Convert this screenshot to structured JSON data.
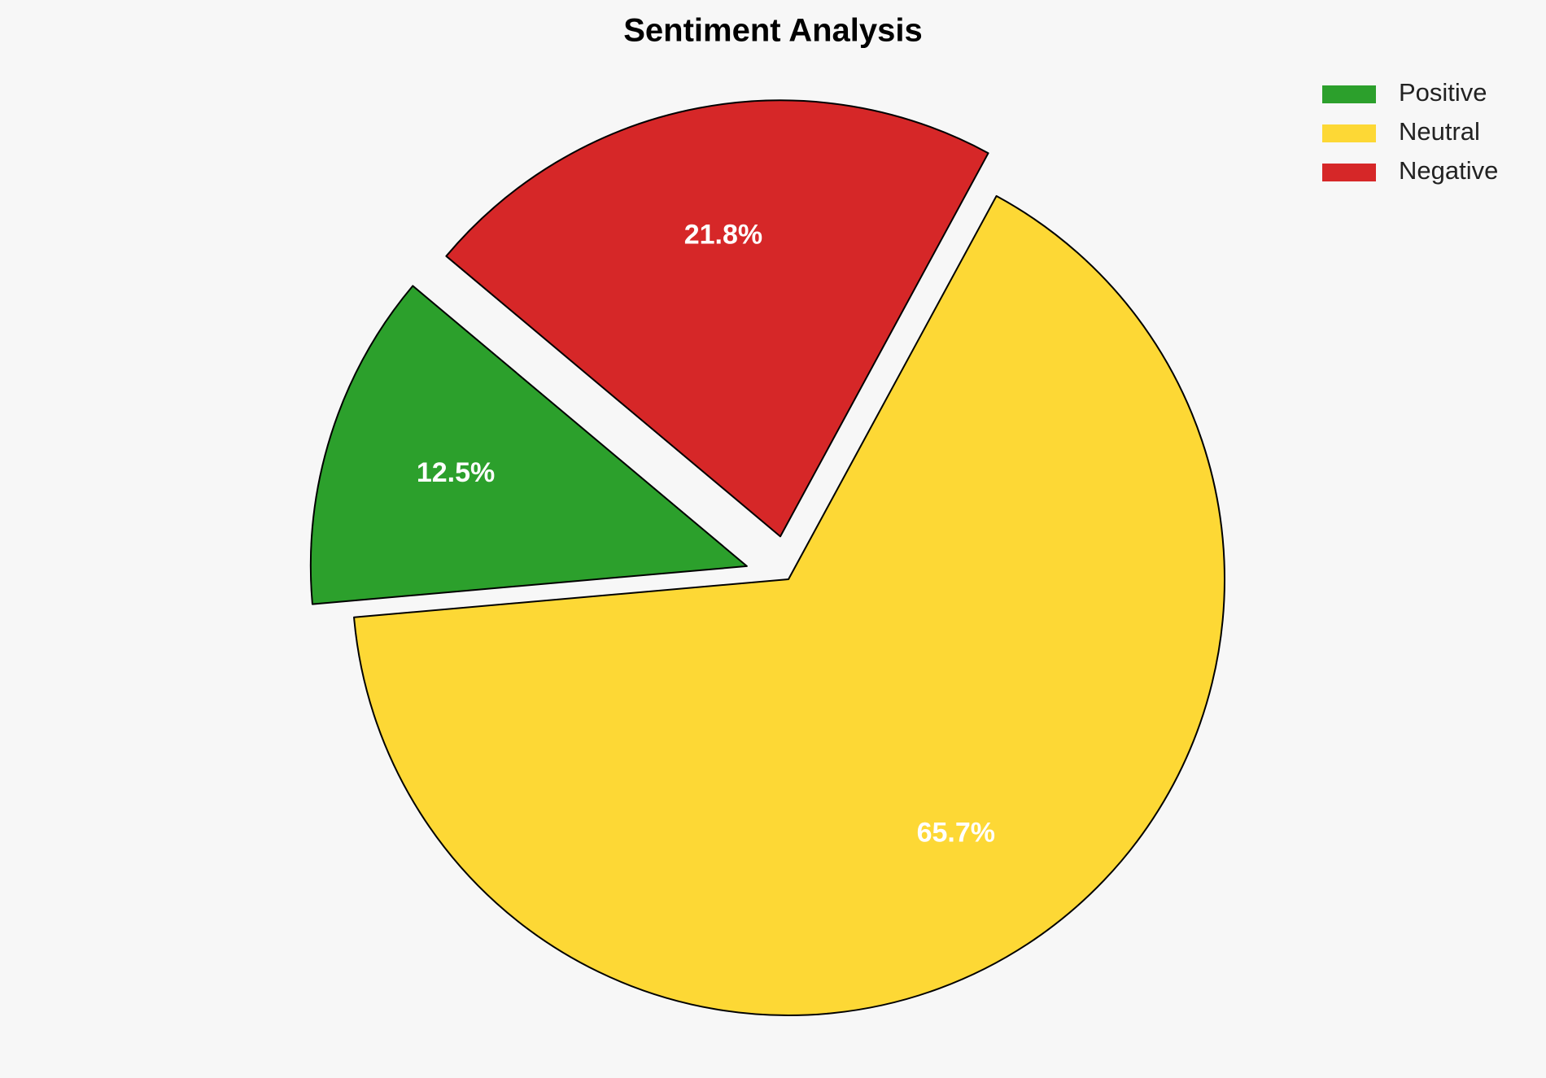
{
  "chart_data": {
    "type": "pie",
    "title": "Sentiment Analysis",
    "categories": [
      "Positive",
      "Neutral",
      "Negative"
    ],
    "values": [
      12.5,
      65.7,
      21.8
    ],
    "value_labels": [
      "12.5%",
      "65.7%",
      "21.8%"
    ],
    "colors": [
      "#2ca02c",
      "#fdd835",
      "#d62728"
    ],
    "legend": "upper right"
  }
}
